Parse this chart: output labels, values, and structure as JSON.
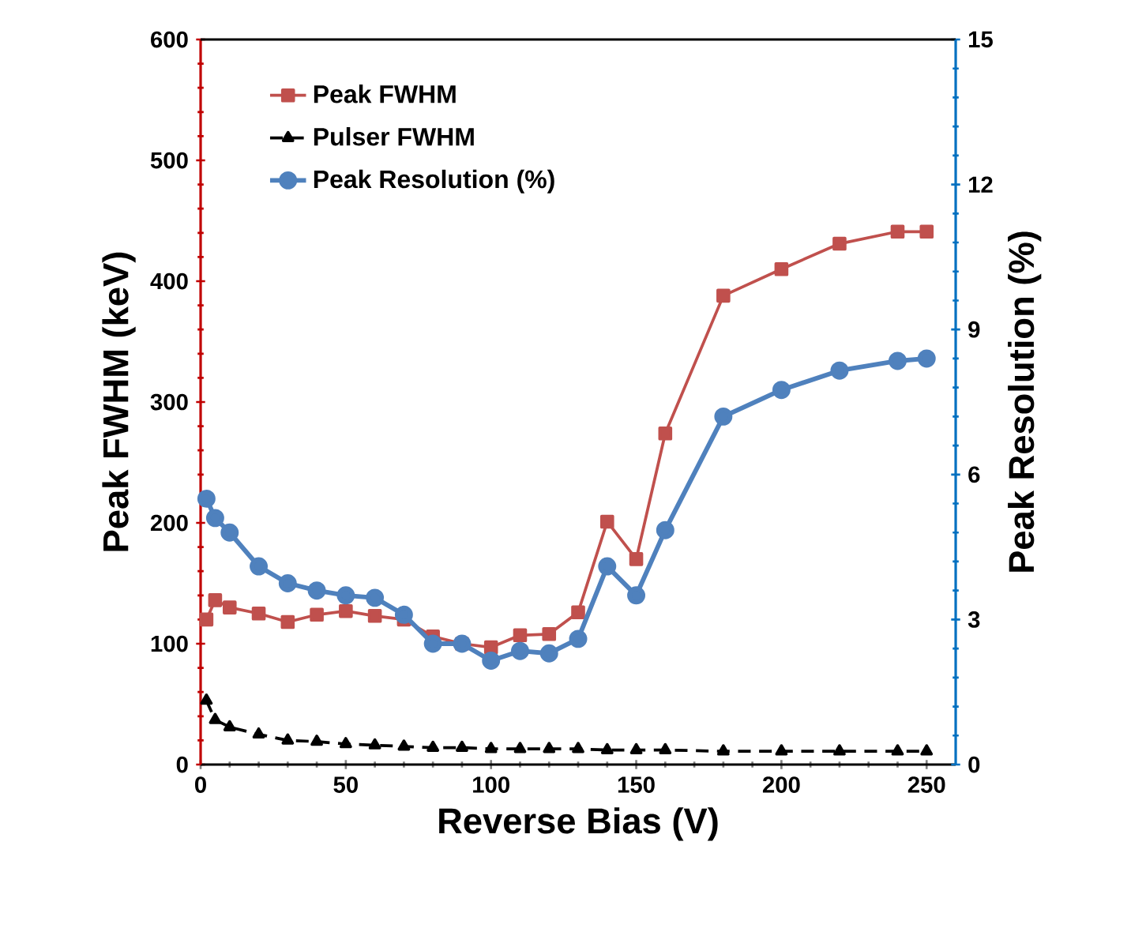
{
  "chart_data": {
    "type": "line",
    "xlabel": "Reverse Bias (V)",
    "ylabel": "Peak FWHM (keV)",
    "y2label": "Peak Resolution (%)",
    "x": [
      2,
      5,
      10,
      20,
      30,
      40,
      50,
      60,
      70,
      80,
      90,
      100,
      110,
      120,
      130,
      140,
      150,
      160,
      180,
      200,
      220,
      240,
      250
    ],
    "series": [
      {
        "name": "Peak FWHM",
        "color": "#c0504d",
        "marker": "square",
        "line_style": "solid",
        "values": [
          120,
          136,
          130,
          125,
          118,
          124,
          127,
          123,
          120,
          106,
          100,
          97,
          107,
          108,
          126,
          201,
          170,
          274,
          388,
          410,
          431,
          441,
          441
        ]
      },
      {
        "name": "Pulser FWHM",
        "color": "#000000",
        "marker": "triangle",
        "line_style": "dashed",
        "values": [
          53,
          37,
          31,
          25,
          20,
          19,
          17,
          16,
          15,
          14,
          14,
          13,
          13,
          13,
          13,
          12,
          12,
          12,
          11,
          11,
          11,
          11,
          11
        ]
      },
      {
        "name": "Peak Resolution (%)",
        "color": "#4f81bd",
        "marker": "circle",
        "line_style": "solid",
        "axis": "y2",
        "values": [
          5.5,
          5.1,
          4.8,
          4.1,
          3.75,
          3.6,
          3.5,
          3.45,
          3.1,
          2.5,
          2.5,
          2.15,
          2.35,
          2.3,
          2.6,
          4.1,
          3.5,
          4.85,
          7.2,
          7.75,
          8.15,
          8.35,
          8.4
        ]
      }
    ],
    "xlim": [
      0,
      260
    ],
    "xticks": [
      0,
      50,
      100,
      150,
      200,
      250
    ],
    "ylim": [
      0,
      600
    ],
    "yticks": [
      0,
      100,
      200,
      300,
      400,
      500,
      600
    ],
    "y2lim": [
      0,
      15
    ],
    "y2ticks": [
      0,
      3,
      6,
      9,
      12,
      15
    ],
    "grid": false,
    "legend": "top left"
  }
}
